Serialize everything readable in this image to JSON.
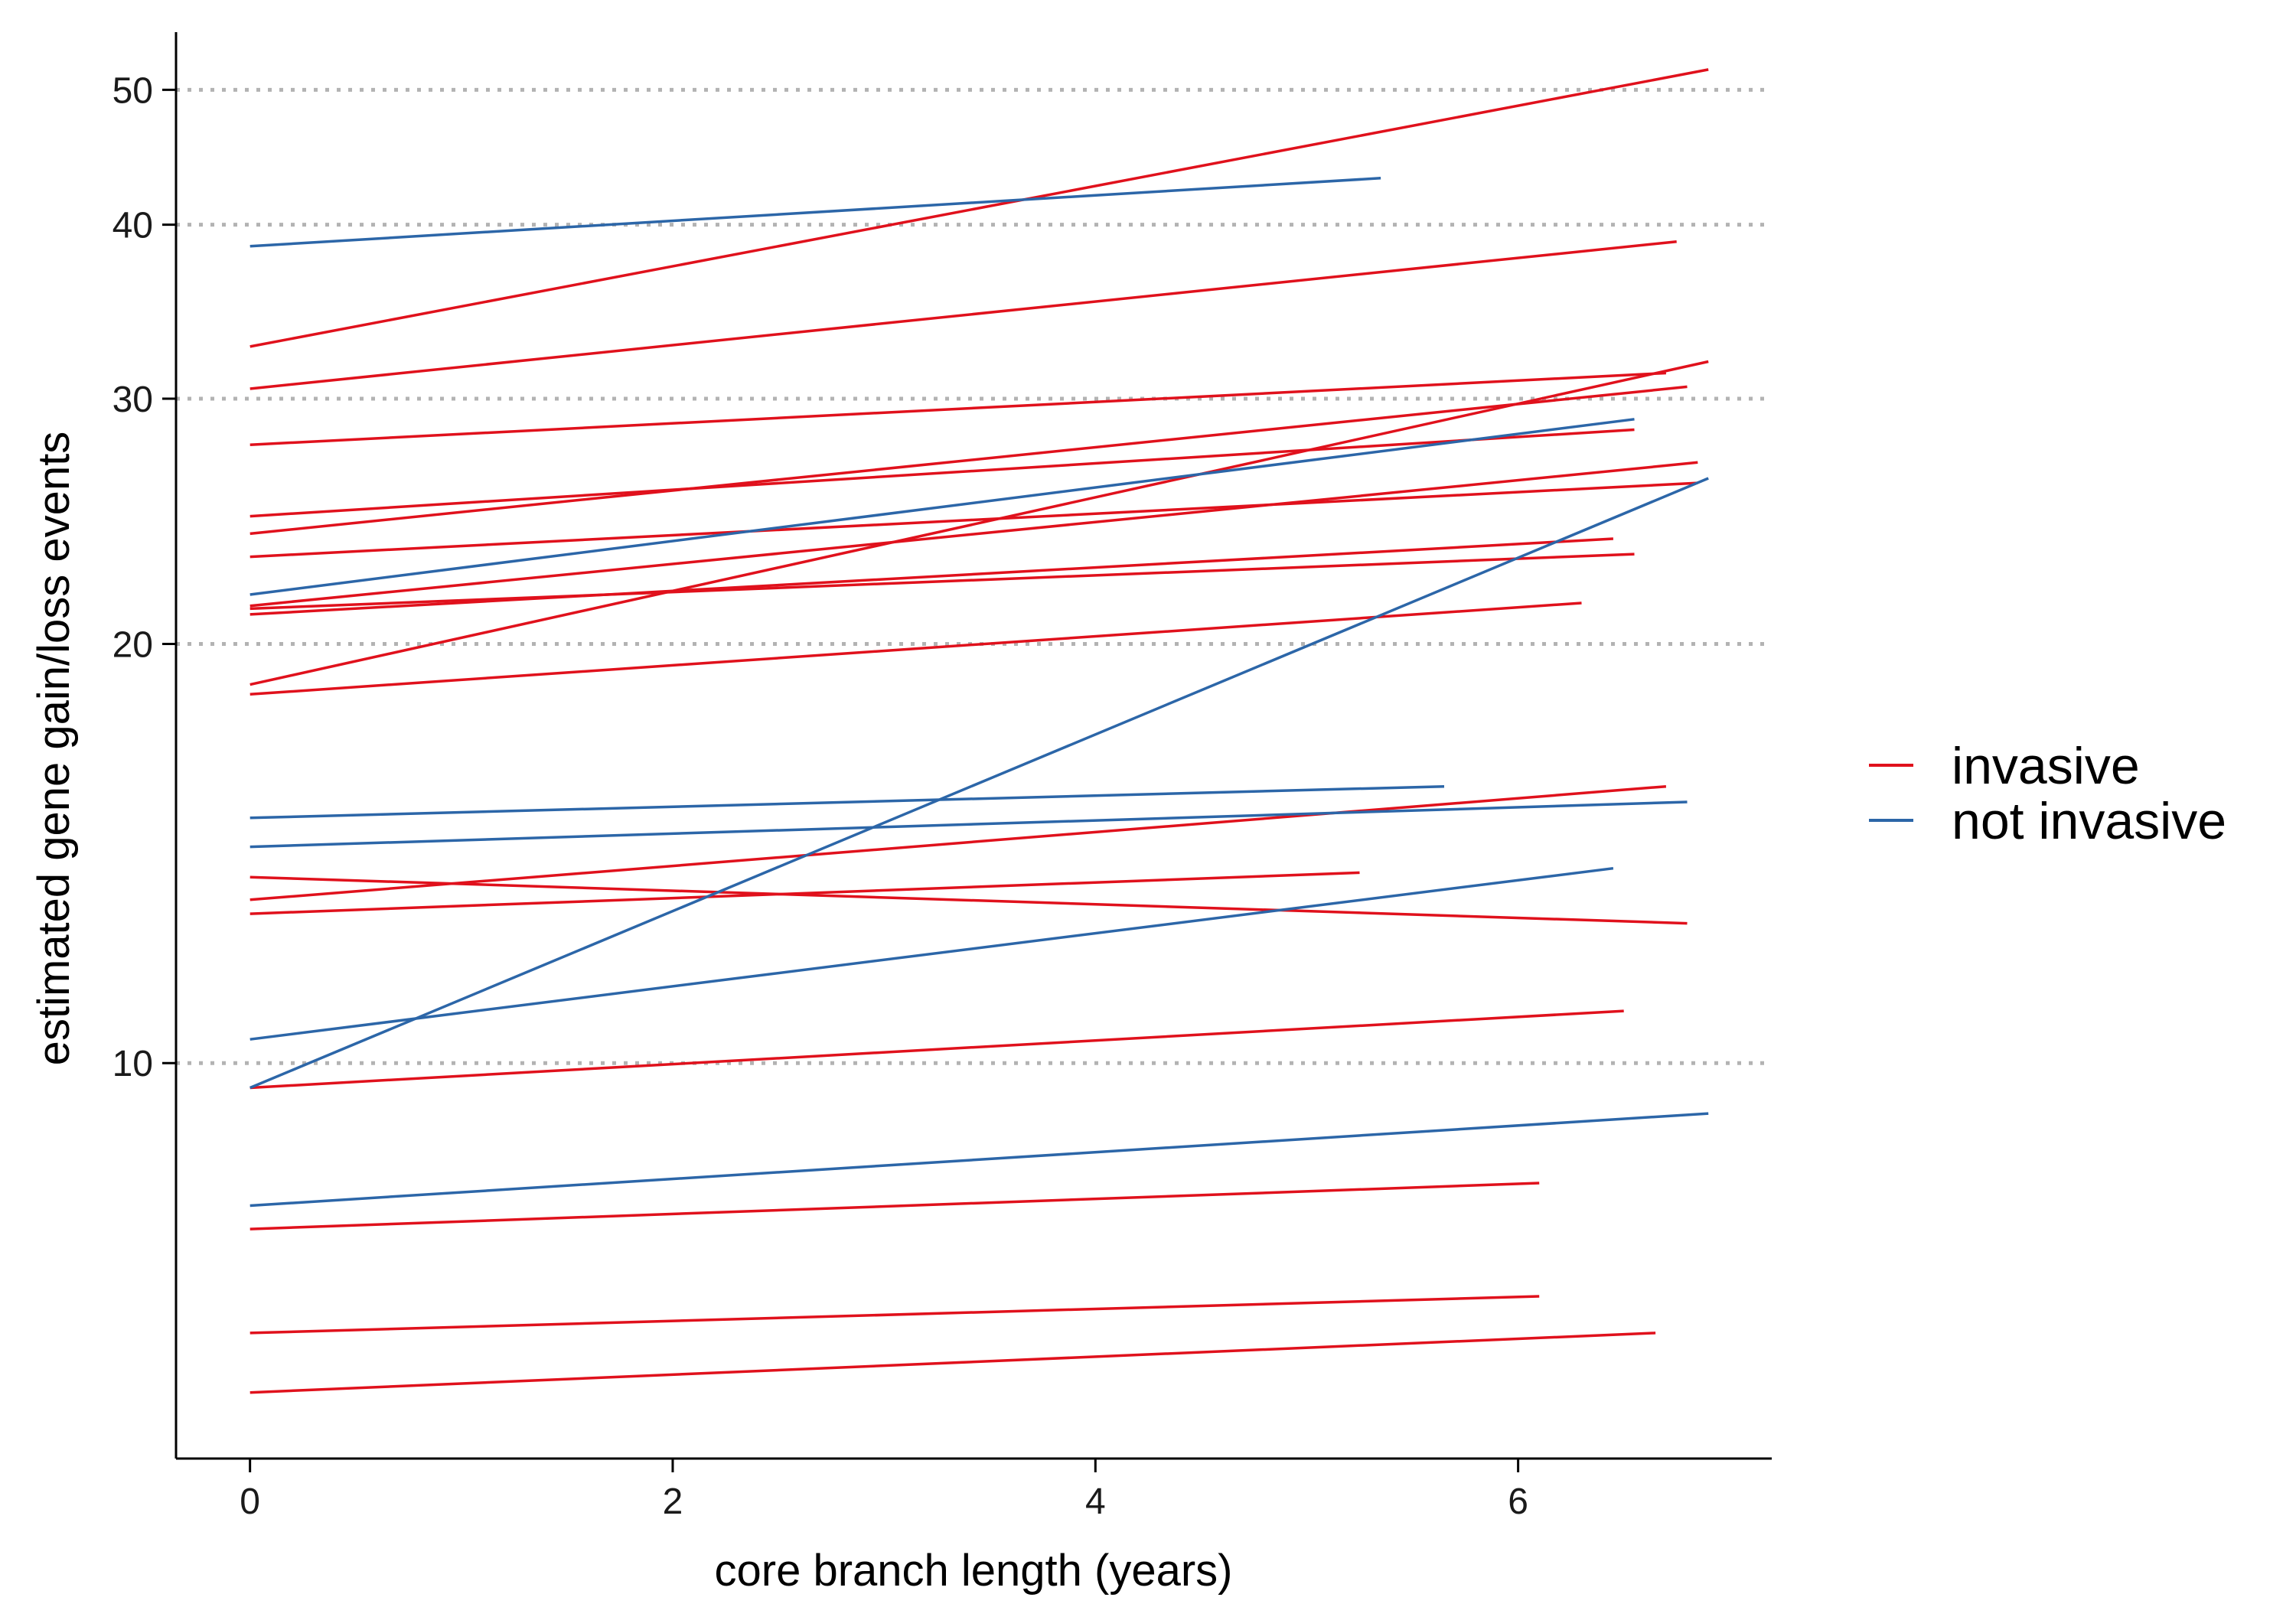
{
  "chart_data": {
    "type": "line",
    "xlabel": "core branch length (years)",
    "ylabel": "estimated gene gain/loss events",
    "x_ticks": [
      0,
      2,
      4,
      6
    ],
    "y_ticks": [
      10,
      20,
      30,
      40,
      50
    ],
    "y_scale": "log",
    "xlim": [
      -0.35,
      7.2
    ],
    "ylim": [
      5.2,
      55
    ],
    "grid": "horizontal dotted at y ticks",
    "legend_position": "right",
    "legend": [
      {
        "label": "invasive",
        "color": "#e0111c"
      },
      {
        "label": "not invasive",
        "color": "#2c66a8"
      }
    ],
    "series": [
      {
        "group": "invasive",
        "x": [
          0,
          6.9
        ],
        "y": [
          32.7,
          51.7
        ]
      },
      {
        "group": "invasive",
        "x": [
          0,
          6.75
        ],
        "y": [
          30.5,
          38.9
        ]
      },
      {
        "group": "invasive",
        "x": [
          0,
          6.7
        ],
        "y": [
          27.8,
          31.3
        ]
      },
      {
        "group": "invasive",
        "x": [
          0,
          6.9
        ],
        "y": [
          18.7,
          31.9
        ]
      },
      {
        "group": "invasive",
        "x": [
          0,
          6.8
        ],
        "y": [
          24.0,
          30.6
        ]
      },
      {
        "group": "invasive",
        "x": [
          0,
          6.55
        ],
        "y": [
          24.7,
          28.5
        ]
      },
      {
        "group": "invasive",
        "x": [
          0,
          6.85
        ],
        "y": [
          21.3,
          27.0
        ]
      },
      {
        "group": "invasive",
        "x": [
          0,
          6.85
        ],
        "y": [
          23.1,
          26.1
        ]
      },
      {
        "group": "invasive",
        "x": [
          0,
          6.45
        ],
        "y": [
          21.0,
          23.8
        ]
      },
      {
        "group": "invasive",
        "x": [
          0,
          6.55
        ],
        "y": [
          21.2,
          23.2
        ]
      },
      {
        "group": "invasive",
        "x": [
          0,
          6.3
        ],
        "y": [
          18.4,
          21.4
        ]
      },
      {
        "group": "invasive",
        "x": [
          0,
          6.7
        ],
        "y": [
          13.1,
          15.8
        ]
      },
      {
        "group": "invasive",
        "x": [
          0,
          5.25
        ],
        "y": [
          12.8,
          13.7
        ]
      },
      {
        "group": "invasive",
        "x": [
          0,
          6.8
        ],
        "y": [
          13.6,
          12.6
        ]
      },
      {
        "group": "invasive",
        "x": [
          0,
          6.5
        ],
        "y": [
          9.6,
          10.9
        ]
      },
      {
        "group": "invasive",
        "x": [
          0,
          6.1
        ],
        "y": [
          7.6,
          8.2
        ]
      },
      {
        "group": "invasive",
        "x": [
          0,
          6.1
        ],
        "y": [
          6.4,
          6.8
        ]
      },
      {
        "group": "invasive",
        "x": [
          0,
          6.65
        ],
        "y": [
          5.8,
          6.4
        ]
      },
      {
        "group": "not invasive",
        "x": [
          0,
          5.35
        ],
        "y": [
          38.6,
          43.2
        ]
      },
      {
        "group": "not invasive",
        "x": [
          0,
          6.55
        ],
        "y": [
          21.7,
          29.0
        ]
      },
      {
        "group": "not invasive",
        "x": [
          0,
          6.9
        ],
        "y": [
          9.6,
          26.3
        ]
      },
      {
        "group": "not invasive",
        "x": [
          0,
          5.65
        ],
        "y": [
          15.0,
          15.8
        ]
      },
      {
        "group": "not invasive",
        "x": [
          0,
          6.8
        ],
        "y": [
          14.3,
          15.4
        ]
      },
      {
        "group": "not invasive",
        "x": [
          0,
          6.45
        ],
        "y": [
          10.4,
          13.8
        ]
      },
      {
        "group": "not invasive",
        "x": [
          0,
          6.9
        ],
        "y": [
          7.9,
          9.2
        ]
      }
    ]
  }
}
